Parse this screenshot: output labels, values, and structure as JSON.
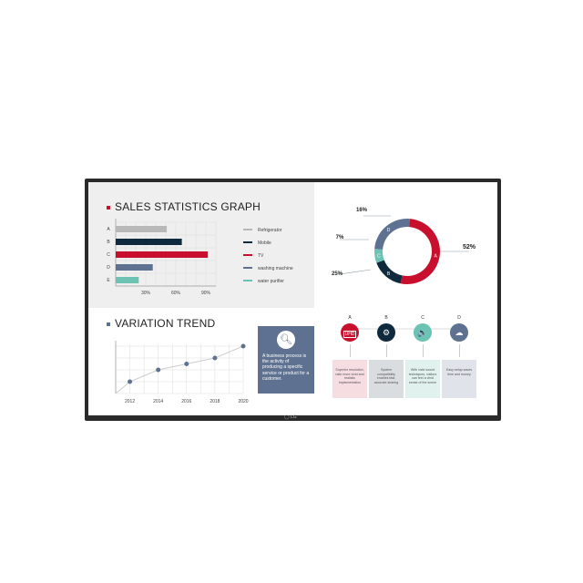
{
  "sales": {
    "title": "SALES STATISTICS GRAPH",
    "accent": "#c8102e",
    "chart_data": {
      "type": "bar",
      "orientation": "horizontal",
      "categories": [
        "A",
        "B",
        "C",
        "D",
        "E"
      ],
      "values": [
        51,
        66,
        92,
        37,
        23
      ],
      "colors": [
        "#b8b8b8",
        "#0f2a3d",
        "#c8102e",
        "#5e7190",
        "#6cc3b4"
      ],
      "xticks": [
        "30%",
        "60%",
        "90%"
      ],
      "xlim": [
        0,
        100
      ],
      "grid": true,
      "legend": [
        "Refrigerator",
        "Mobile",
        "TV",
        "washing machine",
        "water purifier"
      ],
      "legend_position": "right"
    }
  },
  "share": {
    "chart_data": {
      "type": "pie",
      "donut": true,
      "categories": [
        "A",
        "B",
        "C",
        "D"
      ],
      "values": [
        52,
        16,
        7,
        25
      ],
      "labels": [
        "52%",
        "16%",
        "7%",
        "25%"
      ],
      "colors": [
        "#c8102e",
        "#0f2a3d",
        "#6cc3b4",
        "#5e7190"
      ]
    }
  },
  "trend": {
    "title": "VARIATION TREND",
    "accent": "#5e7190",
    "chart_data": {
      "type": "line",
      "x": [
        2012,
        2014,
        2016,
        2018,
        2020
      ],
      "y": [
        1,
        2,
        2.5,
        3,
        4
      ],
      "xticks": [
        "2012",
        "2014",
        "2016",
        "2018",
        "2020"
      ],
      "ylim": [
        0,
        4
      ],
      "grid": true,
      "color": "#5e7190"
    }
  },
  "info": {
    "icon": "magnifier-icon",
    "text": "A business process is the activity of producing a specific service or product for a customer."
  },
  "features": [
    {
      "letter": "A",
      "icon": "uhd-icon",
      "badge": "UHD",
      "color": "#c8102e",
      "box": "#f6dde2",
      "text": "Superior resolution, ratio more vivid and realistic implementation"
    },
    {
      "letter": "B",
      "icon": "gear-icon",
      "badge": "⚙",
      "color": "#0f2a3d",
      "box": "#d9dde0",
      "text": "System compatibility enables fast, accurate sharing"
    },
    {
      "letter": "C",
      "icon": "speaker-icon",
      "badge": "🔈",
      "color": "#6cc3b4",
      "box": "#e0f1ee",
      "text": "With vivid sound techniques, visitors can feel a vivid sense of the scene"
    },
    {
      "letter": "D",
      "icon": "network-icon",
      "badge": "☁",
      "color": "#5e7190",
      "box": "#e0e3ea",
      "text": "Easy setup saves time and money"
    }
  ],
  "brand": "LG"
}
